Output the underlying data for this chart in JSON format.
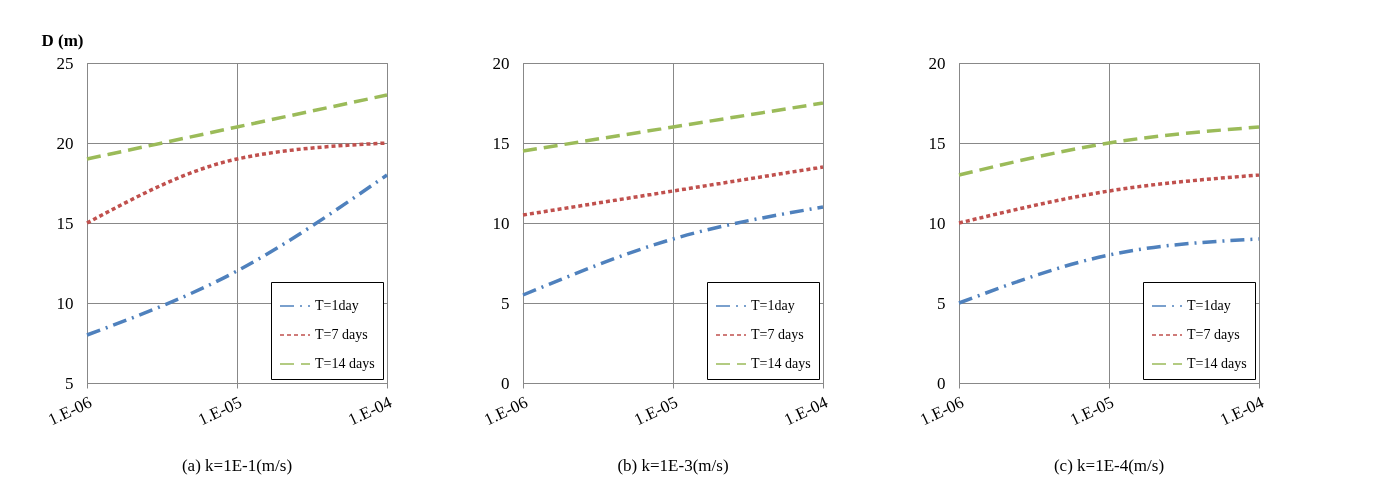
{
  "chart_data": [
    {
      "type": "line",
      "title": "(a) k=1E-1(m/s)",
      "ylabel": "D (m)",
      "categories": [
        "1.E-06",
        "1.E-05",
        "1.E-04"
      ],
      "ylim": [
        5,
        25
      ],
      "yticks": [
        5,
        10,
        15,
        20,
        25
      ],
      "grid": true,
      "legend": "bottom right",
      "series": [
        {
          "name": "T=1day",
          "color": "#4f81bd",
          "line_style": "dashdot",
          "values": [
            8,
            12,
            18
          ]
        },
        {
          "name": "T=7 days",
          "color": "#c0504d",
          "line_style": "dotted",
          "values": [
            15,
            19,
            20
          ]
        },
        {
          "name": "T=14 days",
          "color": "#9bbb59",
          "line_style": "dashed",
          "values": [
            19,
            21,
            23
          ]
        }
      ]
    },
    {
      "type": "line",
      "title": "(b) k=1E-3(m/s)",
      "categories": [
        "1.E-06",
        "1.E-05",
        "1.E-04"
      ],
      "ylim": [
        0,
        20
      ],
      "yticks": [
        0,
        5,
        10,
        15,
        20
      ],
      "grid": true,
      "legend": "bottom right",
      "series": [
        {
          "name": "T=1day",
          "color": "#4f81bd",
          "line_style": "dashdot",
          "values": [
            5.5,
            9,
            11
          ]
        },
        {
          "name": "T=7 days",
          "color": "#c0504d",
          "line_style": "dotted",
          "values": [
            10.5,
            12,
            13.5
          ]
        },
        {
          "name": "T=14 days",
          "color": "#9bbb59",
          "line_style": "dashed",
          "values": [
            14.5,
            16,
            17.5
          ]
        }
      ]
    },
    {
      "type": "line",
      "title": "(c) k=1E-4(m/s)",
      "categories": [
        "1.E-06",
        "1.E-05",
        "1.E-04"
      ],
      "ylim": [
        0,
        20
      ],
      "yticks": [
        0,
        5,
        10,
        15,
        20
      ],
      "grid": true,
      "legend": "bottom right",
      "series": [
        {
          "name": "T=1day",
          "color": "#4f81bd",
          "line_style": "dashdot",
          "values": [
            5,
            8,
            9
          ]
        },
        {
          "name": "T=7 days",
          "color": "#c0504d",
          "line_style": "dotted",
          "values": [
            10,
            12,
            13
          ]
        },
        {
          "name": "T=14 days",
          "color": "#9bbb59",
          "line_style": "dashed",
          "values": [
            13,
            15,
            16
          ]
        }
      ]
    }
  ]
}
